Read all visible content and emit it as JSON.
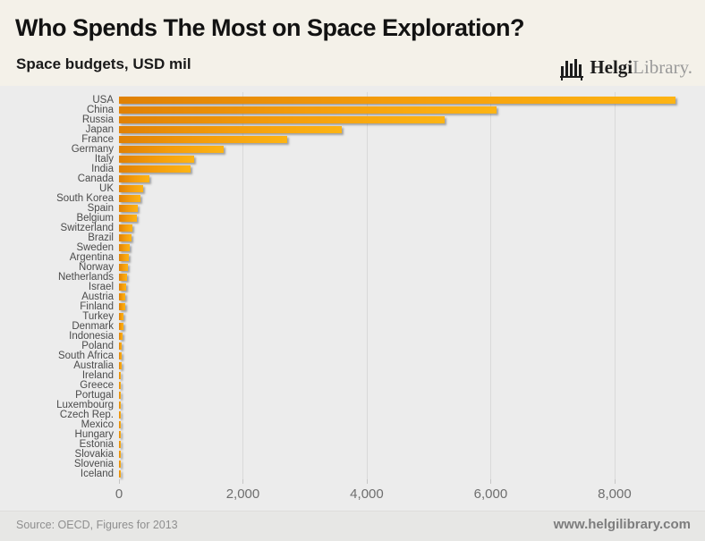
{
  "header": {
    "title": "Who Spends The Most on Space Exploration?",
    "subtitle": "Space budgets, USD mil",
    "logo_text_bold": "Helgi",
    "logo_text_light": "Library."
  },
  "chart_data": {
    "type": "bar",
    "orientation": "horizontal",
    "title": "Who Spends The Most on Space Exploration?",
    "subtitle": "Space budgets, USD mil",
    "xlabel": "",
    "ylabel": "",
    "xlim": [
      0,
      9200
    ],
    "x_ticks": [
      0,
      2000,
      4000,
      6000,
      8000
    ],
    "x_tick_labels": [
      "0",
      "2,000",
      "4,000",
      "6,000",
      "8,000"
    ],
    "grid": true,
    "legend": false,
    "bar_gradient": [
      "#e08105",
      "#fdb414"
    ],
    "categories": [
      "USA",
      "China",
      "Russia",
      "Japan",
      "France",
      "Germany",
      "Italy",
      "India",
      "Canada",
      "UK",
      "South Korea",
      "Spain",
      "Belgium",
      "Switzerland",
      "Brazil",
      "Sweden",
      "Argentina",
      "Norway",
      "Netherlands",
      "Israel",
      "Austria",
      "Finland",
      "Turkey",
      "Denmark",
      "Indonesia",
      "Poland",
      "South Africa",
      "Australia",
      "Ireland",
      "Greece",
      "Portugal",
      "Luxembourg",
      "Czech Rep.",
      "Mexico",
      "Hungary",
      "Estonia",
      "Slovakia",
      "Slovenia",
      "Iceland"
    ],
    "values": [
      8990,
      6090,
      5250,
      3590,
      2710,
      1690,
      1220,
      1150,
      485,
      390,
      350,
      300,
      285,
      220,
      200,
      175,
      155,
      140,
      130,
      115,
      105,
      95,
      75,
      65,
      55,
      48,
      43,
      39,
      33,
      29,
      27,
      24,
      22,
      20,
      17,
      15,
      13,
      12,
      8
    ]
  },
  "footer": {
    "source": "Source: OECD, Figures for 2013",
    "website": "www.helgilibrary.com"
  },
  "colors": {
    "header_bg": "#f4f1e9",
    "chart_bg": "#ececec",
    "footer_bg": "#e7e7e5",
    "bar_start": "#e08105",
    "bar_end": "#fdb414",
    "gridline": "#d9d9d9",
    "category_label": "#4b4b4b",
    "axis_label": "#6e6e6e"
  }
}
